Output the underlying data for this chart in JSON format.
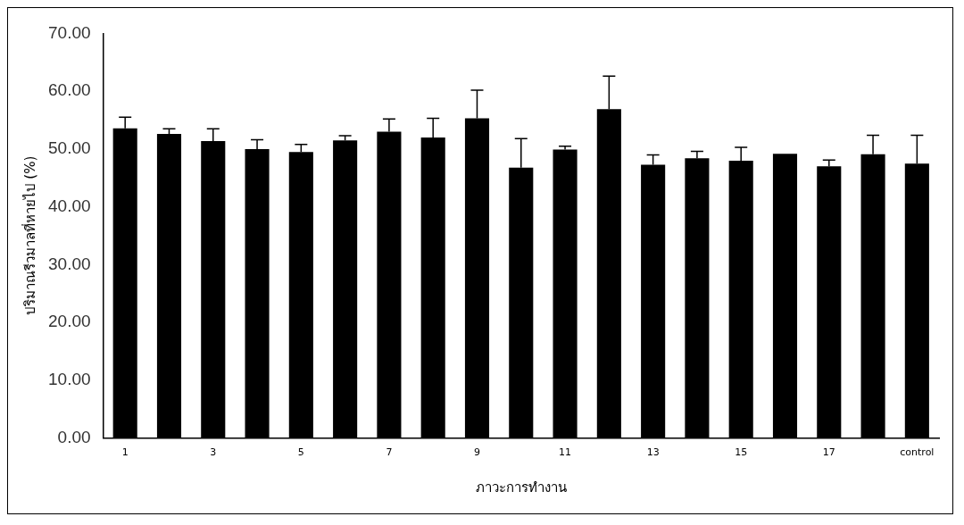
{
  "chart_data": {
    "type": "bar",
    "xlabel": "ภาวะการทำงาน",
    "ylabel": "ปริมาณรีวมาลที่หายไป (%)",
    "categories": [
      "1",
      null,
      "3",
      null,
      "5",
      null,
      "7",
      null,
      "9",
      null,
      "11",
      null,
      "13",
      null,
      "15",
      null,
      "17",
      null,
      "control"
    ],
    "values": [
      53.6,
      52.6,
      51.4,
      50.0,
      49.5,
      51.5,
      53.0,
      52.0,
      55.3,
      46.8,
      49.9,
      56.9,
      47.3,
      48.4,
      48.0,
      49.2,
      47.0,
      49.1,
      47.5
    ],
    "errors": [
      [
        53.6,
        55.5
      ],
      [
        52.6,
        53.5
      ],
      [
        51.4,
        53.5
      ],
      [
        50.0,
        51.6
      ],
      [
        49.5,
        50.8
      ],
      [
        51.5,
        52.3
      ],
      [
        53.0,
        55.2
      ],
      [
        52.0,
        55.3
      ],
      [
        55.3,
        60.2
      ],
      [
        46.8,
        51.8
      ],
      [
        49.9,
        50.5
      ],
      [
        56.9,
        62.6
      ],
      [
        47.3,
        49.0
      ],
      [
        48.4,
        49.6
      ],
      [
        48.0,
        50.3
      ],
      null,
      [
        47.0,
        48.1
      ],
      [
        49.1,
        52.4
      ],
      [
        47.5,
        52.4
      ]
    ],
    "color": "#000000",
    "ylim": [
      0,
      70
    ],
    "yticks": [
      {
        "value": 0,
        "label": "0.00"
      },
      {
        "value": 10,
        "label": "10.00"
      },
      {
        "value": 20,
        "label": "20.00"
      },
      {
        "value": 30,
        "label": "30.00"
      },
      {
        "value": 40,
        "label": "40.00"
      },
      {
        "value": 50,
        "label": "50.00"
      },
      {
        "value": 60,
        "label": "60.00"
      },
      {
        "value": 70,
        "label": "70.00"
      }
    ],
    "grid": false,
    "legend": false
  }
}
